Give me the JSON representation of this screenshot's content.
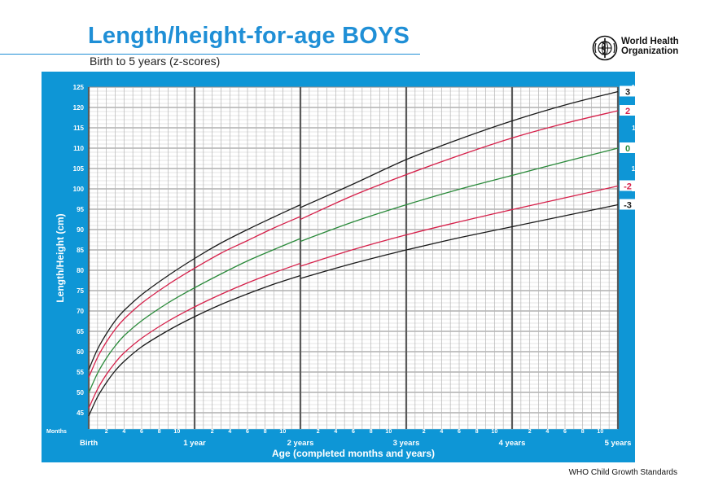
{
  "header": {
    "title": "Length/height-for-age BOYS",
    "subtitle": "Birth to 5 years (z-scores)",
    "org_line1": "World Health",
    "org_line2": "Organization"
  },
  "footer": {
    "source": "WHO Child Growth Standards"
  },
  "colors": {
    "background": "#0e96d6",
    "plot": "#ffffff",
    "z3": "#1a1a1a",
    "z2": "#d6204a",
    "z0": "#2a8a3a",
    "title": "#1f8fd6"
  },
  "chart_data": {
    "type": "line",
    "title": "Length/height-for-age BOYS",
    "subtitle": "Birth to 5 years (z-scores)",
    "xlabel": "Age (completed months and years)",
    "ylabel": "Length/Height (cm)",
    "months_label": "Months",
    "xlim": [
      0,
      60
    ],
    "ylim": [
      41,
      125
    ],
    "yticks": [
      45,
      50,
      55,
      60,
      65,
      70,
      75,
      80,
      85,
      90,
      95,
      100,
      105,
      110,
      115,
      120,
      125
    ],
    "grid": true,
    "year_labels": [
      {
        "month": 0,
        "label": "Birth"
      },
      {
        "month": 12,
        "label": "1 year"
      },
      {
        "month": 24,
        "label": "2 years"
      },
      {
        "month": 36,
        "label": "3 years"
      },
      {
        "month": 48,
        "label": "4 years"
      },
      {
        "month": 60,
        "label": "5 years"
      }
    ],
    "month_ticks": [
      "2",
      "4",
      "6",
      "8",
      "10"
    ],
    "x": [
      0,
      1,
      2,
      3,
      4,
      6,
      9,
      12,
      15,
      18,
      21,
      24,
      30,
      36,
      42,
      48,
      54,
      60
    ],
    "series": [
      {
        "name": "3",
        "key": "z3",
        "values": [
          55.6,
          60.6,
          64.4,
          67.6,
          70.1,
          74.0,
          78.7,
          82.9,
          86.7,
          90.0,
          93.1,
          96.1,
          101.2,
          107.2,
          112.2,
          116.7,
          120.6,
          123.9
        ]
      },
      {
        "name": "2",
        "key": "z2",
        "values": [
          53.7,
          58.6,
          62.4,
          65.5,
          68.0,
          71.9,
          76.5,
          80.5,
          84.2,
          87.3,
          90.4,
          93.2,
          98.4,
          103.5,
          108.2,
          112.5,
          116.1,
          119.2
        ]
      },
      {
        "name": "0",
        "key": "z0",
        "values": [
          49.9,
          54.7,
          58.4,
          61.4,
          63.9,
          67.6,
          72.0,
          75.7,
          79.1,
          82.3,
          85.1,
          87.8,
          91.9,
          96.1,
          99.9,
          103.3,
          106.7,
          110.0
        ]
      },
      {
        "name": "-2",
        "key": "z2",
        "values": [
          46.1,
          50.8,
          54.4,
          57.3,
          59.7,
          63.3,
          67.5,
          71.0,
          74.1,
          76.9,
          79.4,
          81.7,
          85.1,
          88.7,
          91.9,
          94.9,
          97.8,
          100.7
        ]
      },
      {
        "name": "-3",
        "key": "z3",
        "values": [
          44.2,
          48.9,
          52.4,
          55.3,
          57.6,
          61.2,
          65.2,
          68.6,
          71.6,
          74.2,
          76.6,
          78.7,
          81.7,
          85.0,
          88.0,
          90.7,
          93.4,
          96.1
        ]
      }
    ]
  }
}
